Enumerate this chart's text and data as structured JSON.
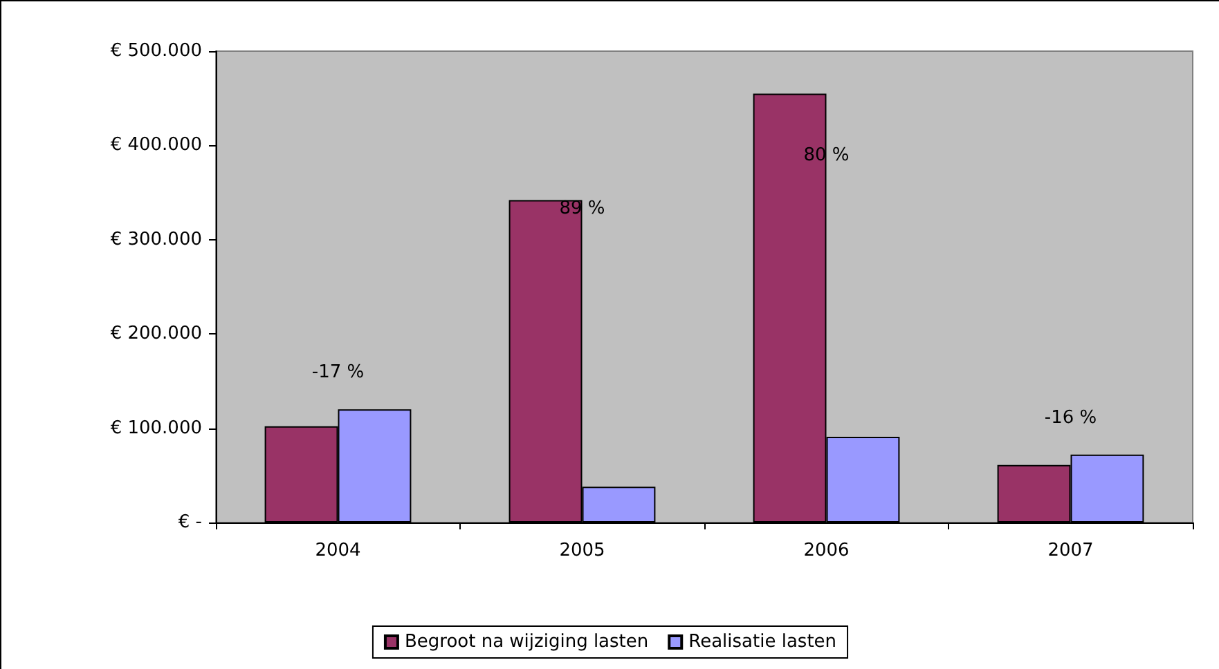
{
  "chart_data": {
    "type": "bar",
    "categories": [
      "2004",
      "2005",
      "2006",
      "2007"
    ],
    "series": [
      {
        "name": "Begroot na wijziging lasten",
        "color": "#993366",
        "values": [
          102000,
          342000,
          455000,
          61000
        ]
      },
      {
        "name": "Realisatie lasten",
        "color": "#9999ff",
        "values": [
          120000,
          38000,
          91000,
          72000
        ]
      }
    ],
    "ylim": [
      0,
      500000
    ],
    "yticks": [
      {
        "value": 0,
        "label": "€ -"
      },
      {
        "value": 100000,
        "label": "€ 100.000"
      },
      {
        "value": 200000,
        "label": "€ 200.000"
      },
      {
        "value": 300000,
        "label": "€ 300.000"
      },
      {
        "value": 400000,
        "label": "€ 400.000"
      },
      {
        "value": 500000,
        "label": "€ 500.000"
      }
    ],
    "annotations": [
      {
        "text": "-17 %",
        "x": "2004",
        "y": 120000
      },
      {
        "text": "89 %",
        "x": "2005",
        "y": 333000
      },
      {
        "text": "80 %",
        "x": "2006",
        "y": 389000
      },
      {
        "text": "-16 %",
        "x": "2007",
        "y": 72000
      }
    ],
    "grid": false,
    "legend": "bottom"
  }
}
